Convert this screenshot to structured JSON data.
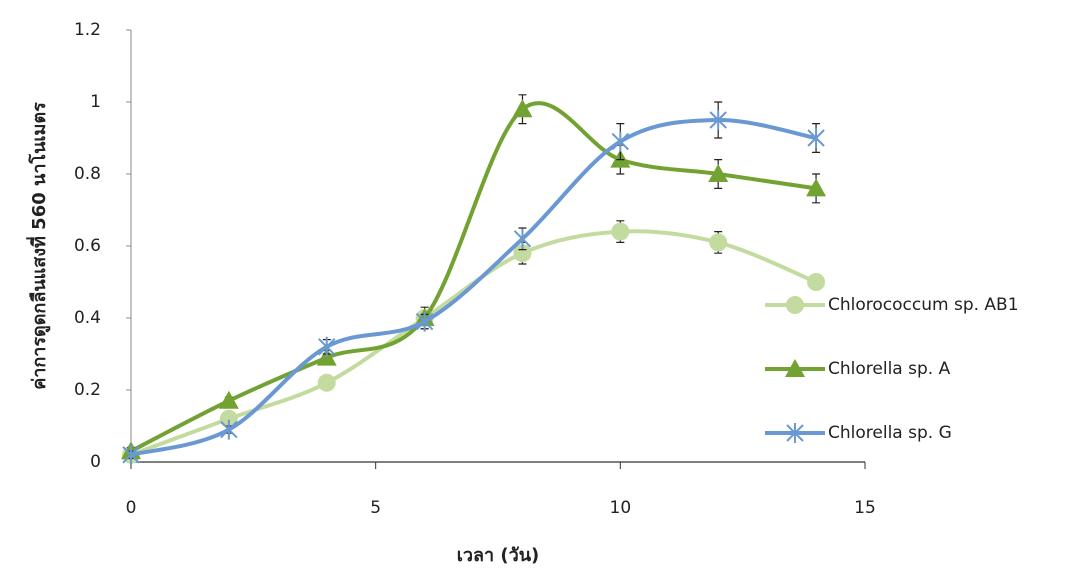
{
  "chart_data": {
    "type": "scatter",
    "x_label": "เวลา (วัน)",
    "y_label": "ค่าการดูดกลืนแสงที่ 560 นาโนเมตร",
    "xlim": [
      0,
      15
    ],
    "xticks": [
      0,
      5,
      10,
      15
    ],
    "ylim": [
      0,
      1.2
    ],
    "yticks": [
      0,
      0.2,
      0.4,
      0.6,
      0.8,
      1,
      1.2
    ],
    "grid": false,
    "legend": "right",
    "series": [
      {
        "name": "Chlorococcum sp. AB1",
        "color": "#c4dba0",
        "marker": "circle",
        "x": [
          0,
          2,
          4,
          6,
          8,
          10,
          12,
          14
        ],
        "values": [
          0.02,
          0.12,
          0.22,
          0.4,
          0.58,
          0.64,
          0.61,
          0.5
        ],
        "errors": [
          0.01,
          0.01,
          0.01,
          0.02,
          0.03,
          0.03,
          0.03,
          0.02
        ]
      },
      {
        "name": "Chlorella sp. A",
        "color": "#72a232",
        "marker": "triangle",
        "x": [
          0,
          2,
          4,
          6,
          8,
          10,
          12,
          14
        ],
        "values": [
          0.03,
          0.17,
          0.29,
          0.4,
          0.98,
          0.84,
          0.8,
          0.76
        ],
        "errors": [
          0.01,
          0.01,
          0.02,
          0.03,
          0.04,
          0.04,
          0.04,
          0.04
        ]
      },
      {
        "name": "Chlorella sp. G",
        "color": "#6a98d2",
        "marker": "star",
        "x": [
          0,
          2,
          4,
          6,
          8,
          10,
          12,
          14
        ],
        "values": [
          0.02,
          0.09,
          0.32,
          0.39,
          0.62,
          0.89,
          0.95,
          0.9
        ],
        "errors": [
          0.01,
          0.01,
          0.02,
          0.02,
          0.03,
          0.05,
          0.05,
          0.04
        ]
      }
    ]
  }
}
